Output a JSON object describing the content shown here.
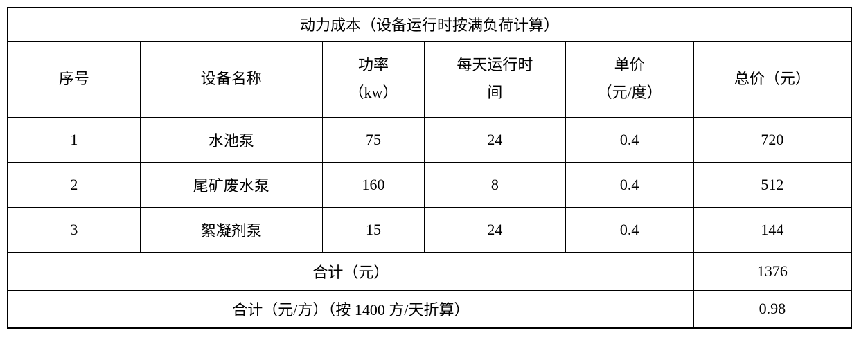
{
  "table": {
    "title": "动力成本（设备运行时按满负荷计算）",
    "columns": [
      {
        "label": "序号"
      },
      {
        "label": "设备名称"
      },
      {
        "label_line1": "功率",
        "label_line2": "（kw）"
      },
      {
        "label_line1": "每天运行时",
        "label_line2": "间"
      },
      {
        "label_line1": "单价",
        "label_line2": "（元/度）"
      },
      {
        "label": "总价（元）"
      }
    ],
    "rows": [
      {
        "seq": "1",
        "name": "水池泵",
        "power": "75",
        "hours": "24",
        "unit_price": "0.4",
        "total": "720"
      },
      {
        "seq": "2",
        "name": "尾矿废水泵",
        "power": "160",
        "hours": "8",
        "unit_price": "0.4",
        "total": "512"
      },
      {
        "seq": "3",
        "name": "絮凝剂泵",
        "power": "15",
        "hours": "24",
        "unit_price": "0.4",
        "total": "144"
      }
    ],
    "summary1": {
      "label": "合计（元）",
      "value": "1376"
    },
    "summary2": {
      "label": "合计（元/方）（按 1400 方/天折算）",
      "value": "0.98"
    },
    "colors": {
      "border": "#000000",
      "background": "#ffffff",
      "text": "#000000"
    },
    "font_size": 22,
    "col_widths_pct": [
      15.7,
      21.6,
      12.1,
      16.7,
      15.2,
      18.7
    ]
  }
}
